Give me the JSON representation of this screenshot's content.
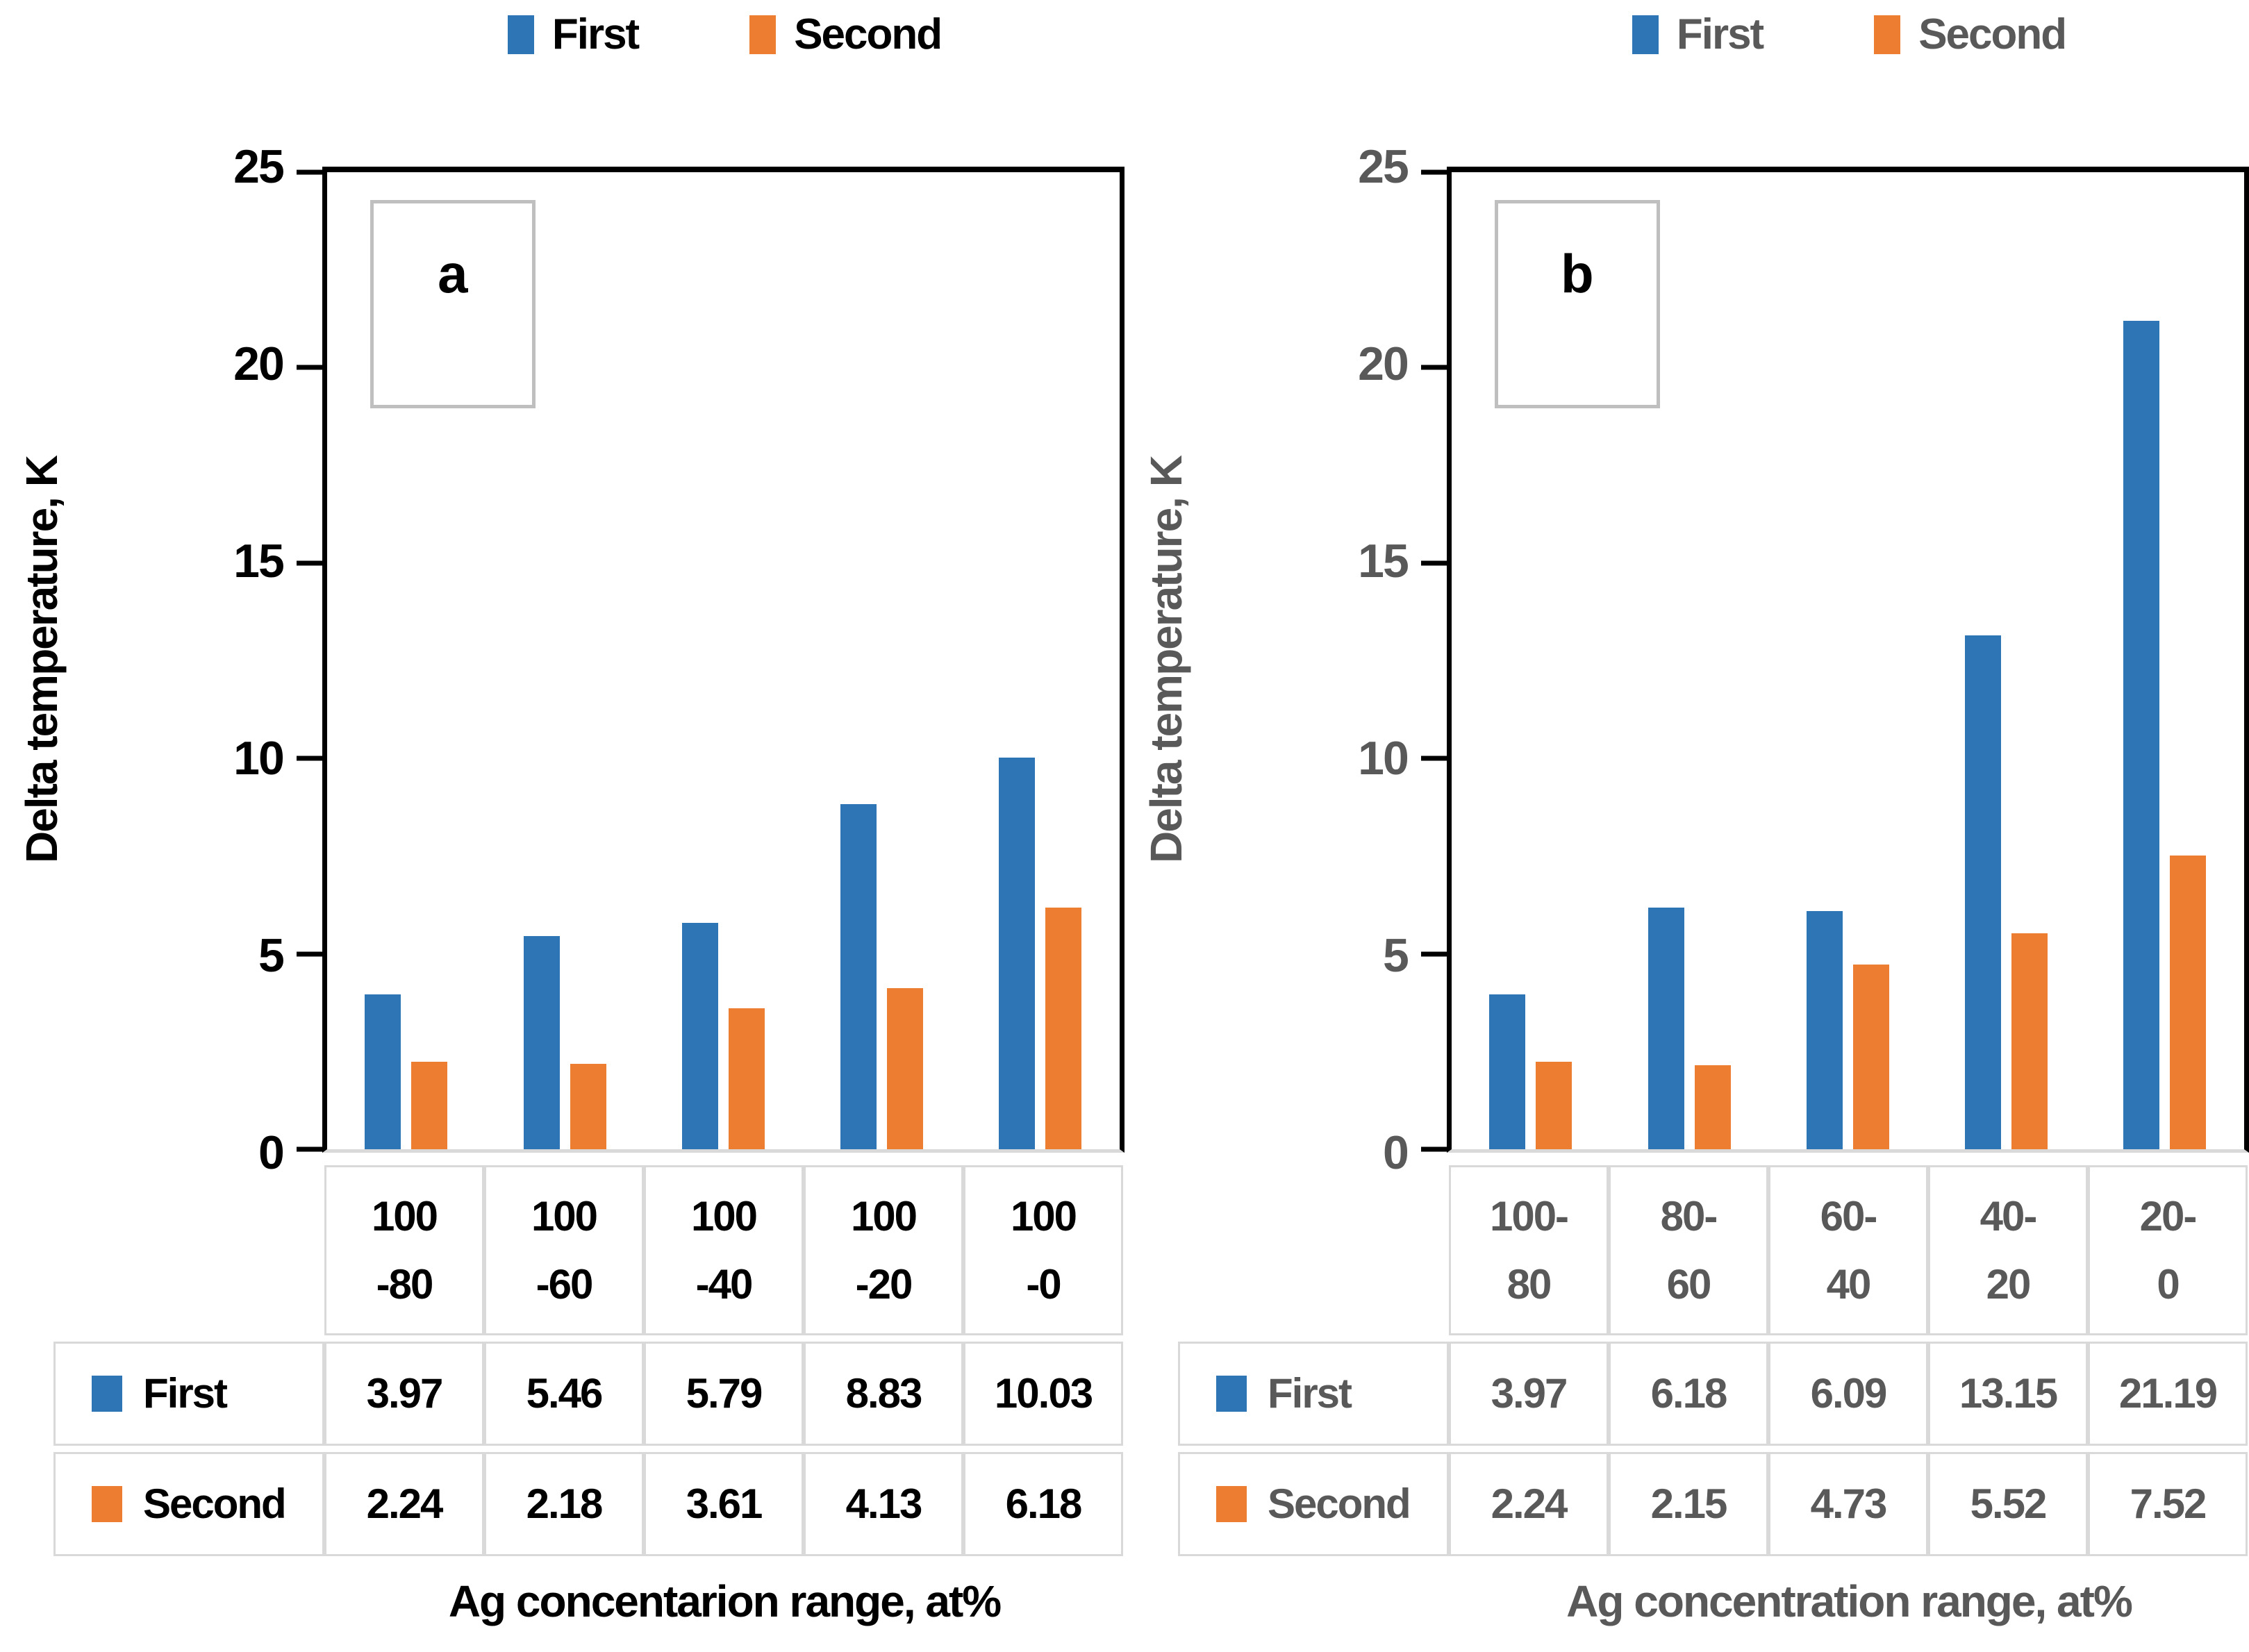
{
  "chart_data": [
    {
      "type": "bar",
      "panel_label": "a",
      "xlabel": "Ag concentarion range, at%",
      "ylabel": "Delta temperature, K",
      "ylim": [
        0,
        25
      ],
      "grid": false,
      "legend_position": "top",
      "data_table_shown": true,
      "y_axis": {
        "max": 25,
        "ticks": [
          "25",
          "20",
          "15",
          "10",
          "5",
          "0"
        ]
      },
      "categories": [
        "100 -80",
        "100 -60",
        "100 -40",
        "100 -20",
        "100 -0"
      ],
      "category_lines": [
        [
          "100",
          "-80"
        ],
        [
          "100",
          "-60"
        ],
        [
          "100",
          "-40"
        ],
        [
          "100",
          "-20"
        ],
        [
          "100",
          "-0"
        ]
      ],
      "series": [
        {
          "name": "First",
          "color": "#2E75B6",
          "values": [
            3.97,
            5.46,
            5.79,
            8.83,
            10.03
          ]
        },
        {
          "name": "Second",
          "color": "#ED7D31",
          "values": [
            2.24,
            2.18,
            3.61,
            4.13,
            6.18
          ]
        }
      ]
    },
    {
      "type": "bar",
      "panel_label": "b",
      "xlabel": "Ag concentration range, at%",
      "ylabel": "Delta temperature, K",
      "ylim": [
        0,
        25
      ],
      "grid": false,
      "legend_position": "top",
      "data_table_shown": true,
      "y_axis": {
        "max": 25,
        "ticks": [
          "25",
          "20",
          "15",
          "10",
          "5",
          "0"
        ]
      },
      "categories": [
        "100- 80",
        "80- 60",
        "60- 40",
        "40- 20",
        "20- 0"
      ],
      "category_lines": [
        [
          "100-",
          "80"
        ],
        [
          "80-",
          "60"
        ],
        [
          "60-",
          "40"
        ],
        [
          "40-",
          "20"
        ],
        [
          "20-",
          "0"
        ]
      ],
      "series": [
        {
          "name": "First",
          "color": "#2E75B6",
          "values": [
            3.97,
            6.18,
            6.09,
            13.15,
            21.19
          ]
        },
        {
          "name": "Second",
          "color": "#ED7D31",
          "values": [
            2.24,
            2.15,
            4.73,
            5.52,
            7.52
          ]
        }
      ]
    }
  ],
  "colors": {
    "series_first": "#2E75B6",
    "series_second": "#ED7D31",
    "panel_a_text": "#000000",
    "panel_b_text": "#595959",
    "plot_border": "#000000",
    "table_border": "#D9D9D9",
    "label_box_border": "#BFBFBF"
  }
}
